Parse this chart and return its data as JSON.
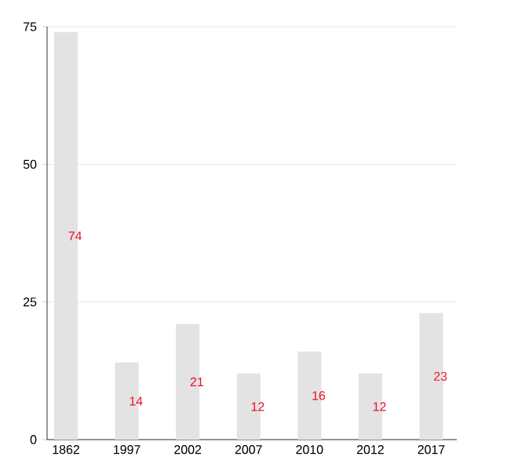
{
  "chart_data": {
    "type": "bar",
    "categories": [
      "1862",
      "1997",
      "2002",
      "2007",
      "2010",
      "2012",
      "2017"
    ],
    "values": [
      74,
      14,
      21,
      12,
      16,
      12,
      23
    ],
    "color": "#e3e3e3",
    "ylim": [
      0,
      75
    ],
    "yticks": [
      0,
      25,
      50,
      75
    ],
    "grid": "y",
    "data_labels": true
  }
}
